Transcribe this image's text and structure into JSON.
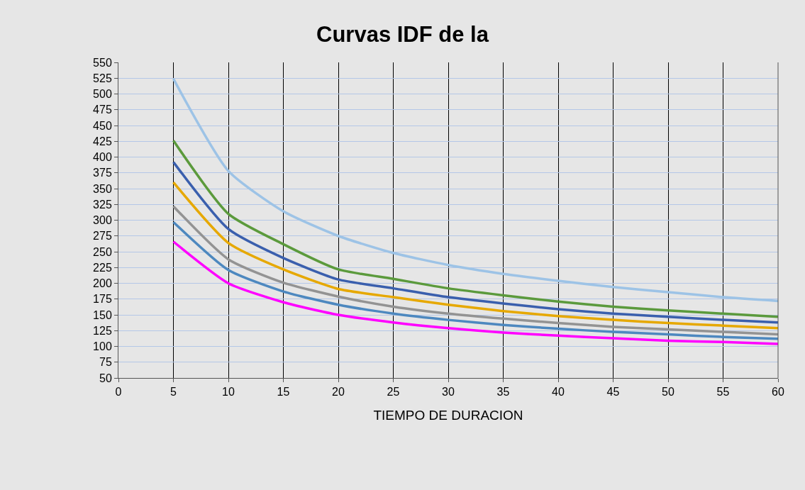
{
  "chart_data": {
    "type": "line",
    "title": "Curvas IDF de la",
    "xlabel": "TIEMPO DE DURACION",
    "x": [
      5,
      10,
      15,
      20,
      25,
      30,
      35,
      40,
      45,
      50,
      55,
      60
    ],
    "series": [
      {
        "color": "#9dc3e6",
        "values": [
          524,
          378,
          314,
          275,
          248,
          229,
          215,
          204,
          194,
          186,
          178,
          172
        ]
      },
      {
        "color": "#5b9a3c",
        "values": [
          426,
          310,
          262,
          222,
          207,
          192,
          181,
          171,
          163,
          157,
          152,
          147
        ]
      },
      {
        "color": "#3a5fad",
        "values": [
          392,
          286,
          240,
          206,
          192,
          178,
          168,
          159,
          152,
          147,
          142,
          138
        ]
      },
      {
        "color": "#e6a800",
        "values": [
          360,
          264,
          222,
          191,
          178,
          166,
          156,
          148,
          142,
          137,
          133,
          129
        ]
      },
      {
        "color": "#939393",
        "values": [
          322,
          238,
          201,
          179,
          163,
          152,
          144,
          137,
          131,
          127,
          123,
          119
        ]
      },
      {
        "color": "#4d88bf",
        "values": [
          297,
          221,
          187,
          166,
          152,
          142,
          134,
          128,
          123,
          119,
          115,
          112
        ]
      },
      {
        "color": "#ff00ff",
        "values": [
          266,
          200,
          170,
          150,
          138,
          129,
          122,
          117,
          113,
          109,
          107,
          104
        ]
      }
    ],
    "xlim": [
      0,
      60
    ],
    "xticks": [
      0,
      5,
      10,
      15,
      20,
      25,
      30,
      35,
      40,
      45,
      50,
      55,
      60
    ],
    "ylim": [
      50,
      550
    ],
    "yticks": [
      50,
      75,
      100,
      125,
      150,
      175,
      200,
      225,
      250,
      275,
      300,
      325,
      350,
      375,
      400,
      425,
      450,
      475,
      500,
      525,
      550
    ],
    "grid": true,
    "marker": "none",
    "line_style": "solid"
  }
}
